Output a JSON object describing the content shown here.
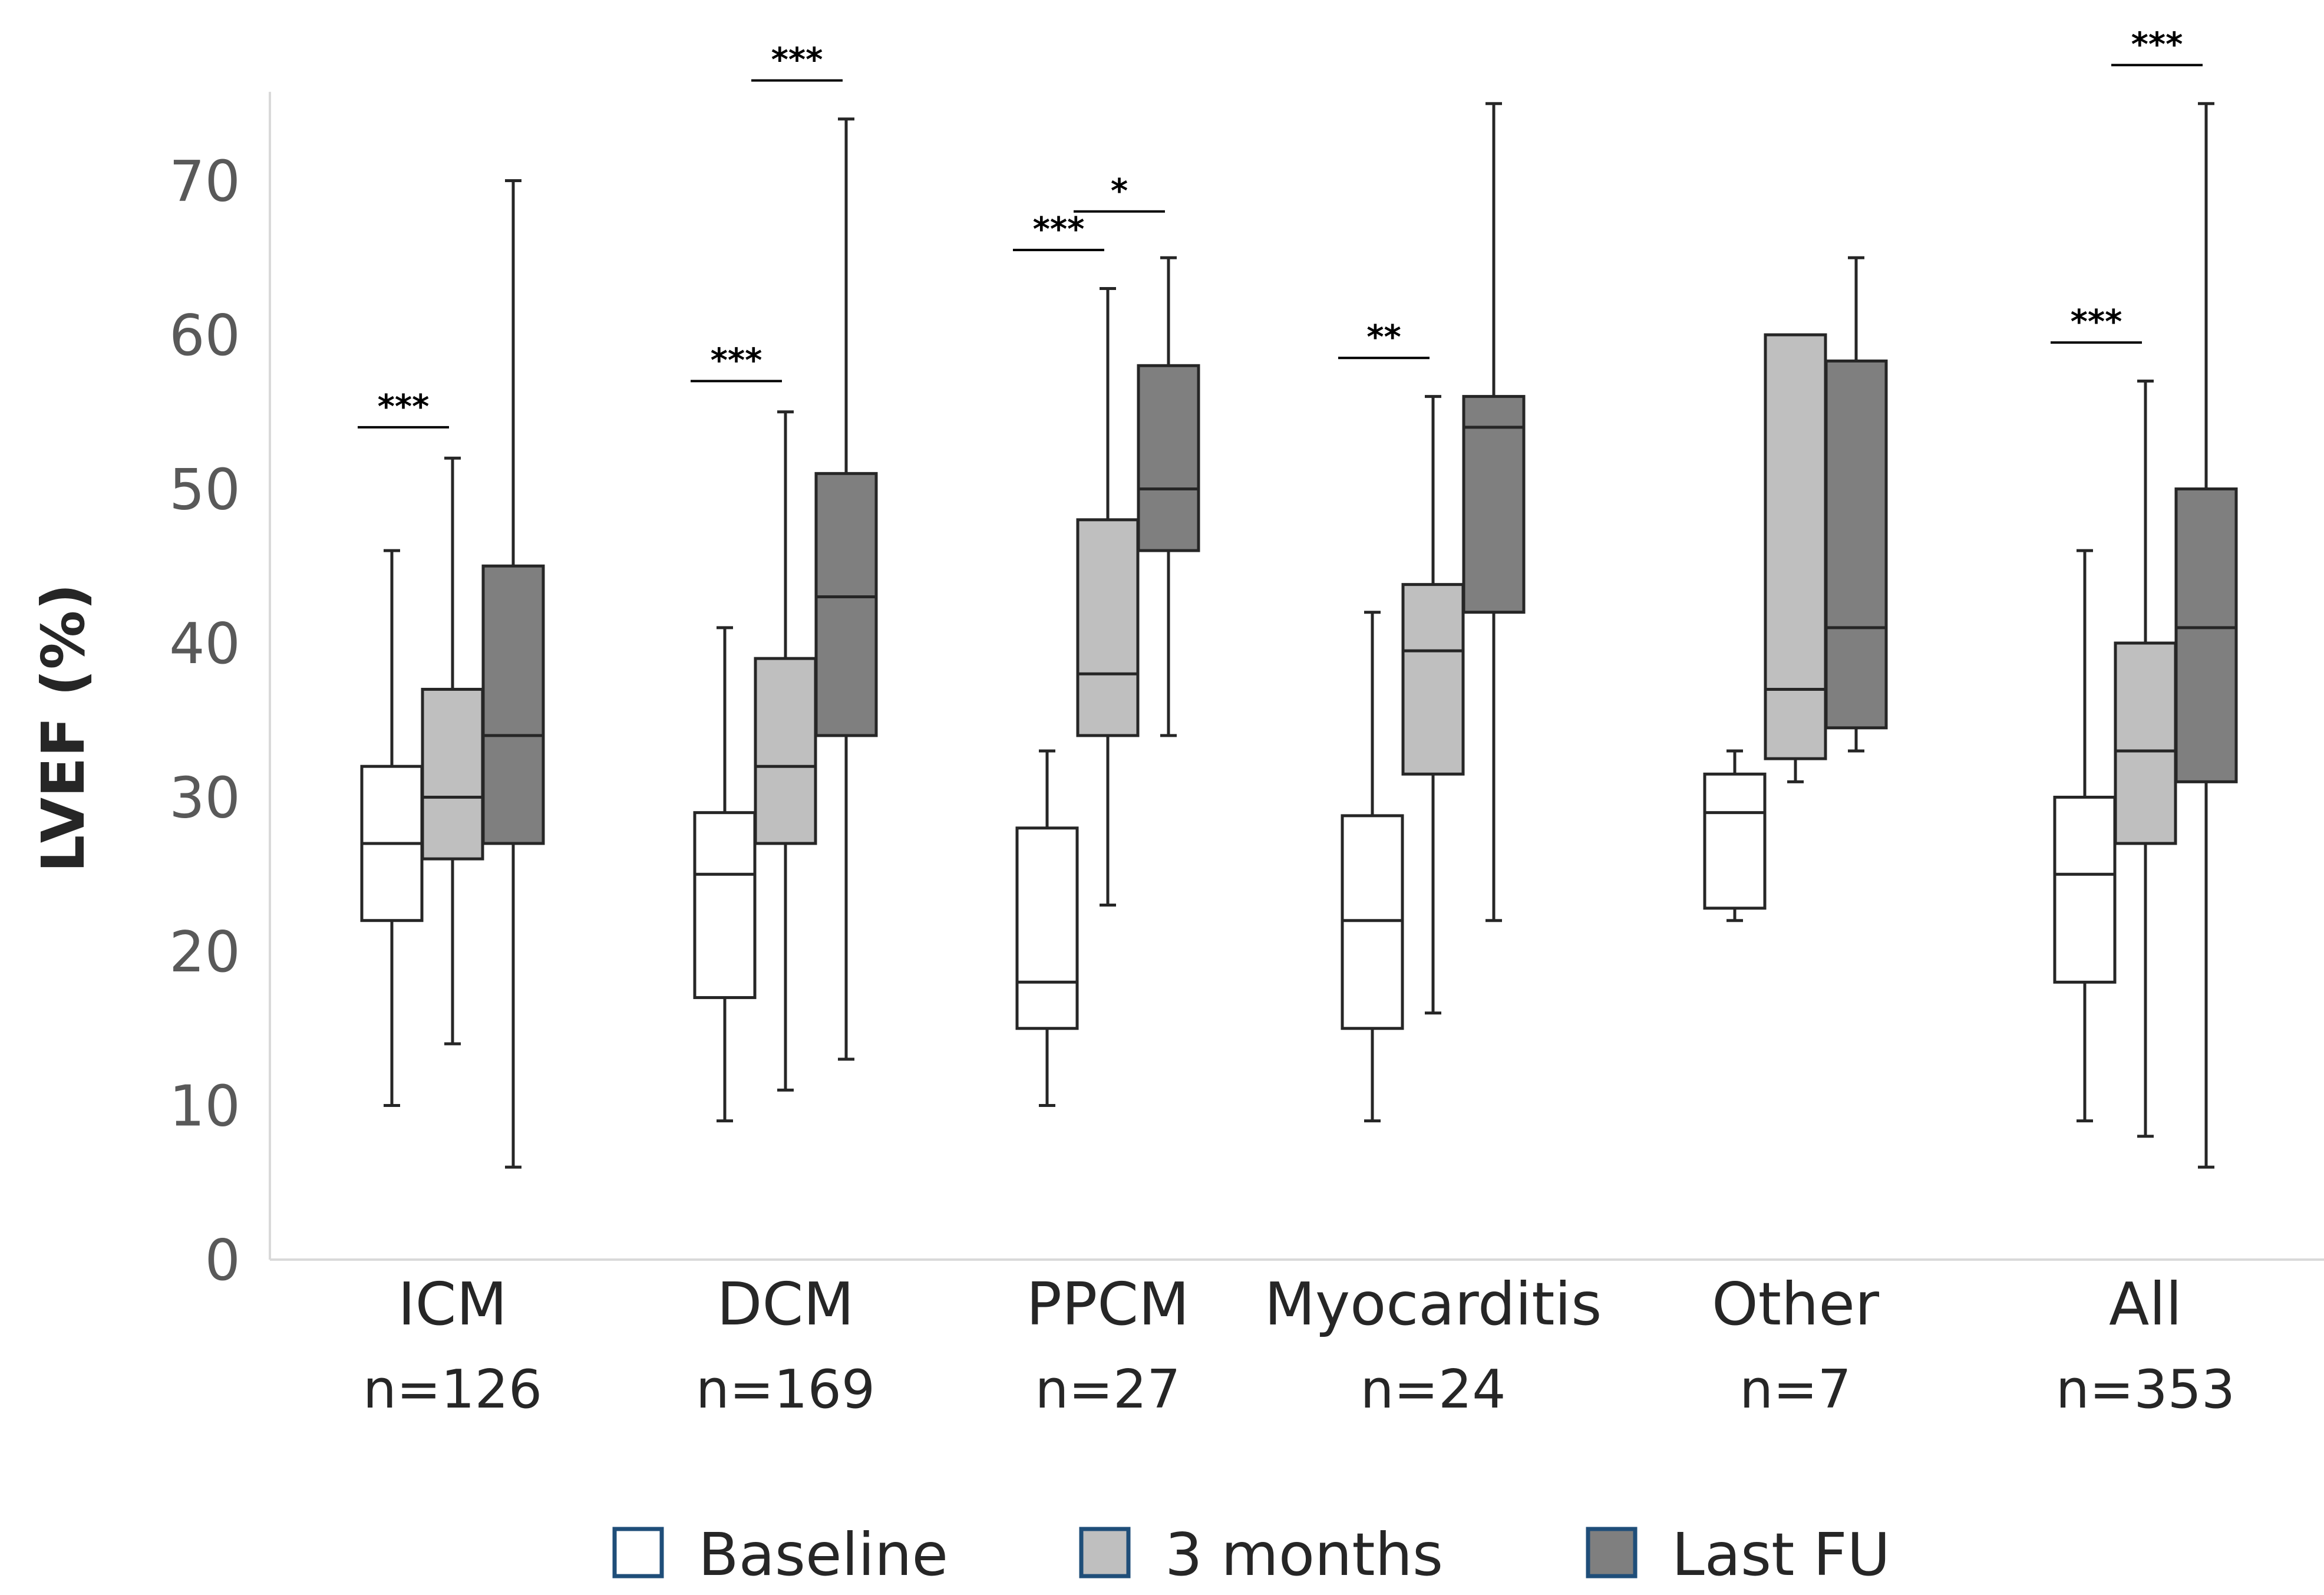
{
  "chart_data": {
    "type": "boxplot",
    "ylabel": "LVEF (%)",
    "xlabel": "",
    "ylim": [
      0,
      75
    ],
    "yticks": [
      0,
      10,
      20,
      30,
      40,
      50,
      60,
      70
    ],
    "grid": false,
    "legend_position": "bottom",
    "series": [
      {
        "name": "Baseline",
        "fill": "#ffffff",
        "legend_border": "#1f4e79"
      },
      {
        "name": "3 months",
        "fill": "#bfbfbf",
        "legend_border": "#1f4e79"
      },
      {
        "name": "Last FU",
        "fill": "#7f7f7f",
        "legend_border": "#1f4e79"
      }
    ],
    "categories": [
      {
        "label": "ICM",
        "n": "n=126",
        "boxes": [
          {
            "min": 10,
            "q1": 22,
            "median": 27,
            "q3": 32,
            "max": 46
          },
          {
            "min": 14,
            "q1": 26,
            "median": 30,
            "q3": 37,
            "max": 52
          },
          {
            "min": 6,
            "q1": 27,
            "median": 34,
            "q3": 45,
            "max": 70
          }
        ],
        "significance": [
          {
            "from": 0,
            "to": 1,
            "label": "***",
            "level": 54
          }
        ]
      },
      {
        "label": "DCM",
        "n": "n=169",
        "boxes": [
          {
            "min": 9,
            "q1": 17,
            "median": 25,
            "q3": 29,
            "max": 41
          },
          {
            "min": 11,
            "q1": 27,
            "median": 32,
            "q3": 39,
            "max": 55
          },
          {
            "min": 13,
            "q1": 34,
            "median": 43,
            "q3": 51,
            "max": 74
          }
        ],
        "significance": [
          {
            "from": 0,
            "to": 1,
            "label": "***",
            "level": 57
          },
          {
            "from": 1,
            "to": 2,
            "label": "***",
            "level": 76.5
          }
        ]
      },
      {
        "label": "PPCM",
        "n": "n=27",
        "boxes": [
          {
            "min": 10,
            "q1": 15,
            "median": 18,
            "q3": 28,
            "max": 33
          },
          {
            "min": 23,
            "q1": 34,
            "median": 38,
            "q3": 48,
            "max": 63
          },
          {
            "min": 34,
            "q1": 46,
            "median": 50,
            "q3": 58,
            "max": 65
          }
        ],
        "significance": [
          {
            "from": 0,
            "to": 1,
            "label": "***",
            "level": 65.5
          },
          {
            "from": 1,
            "to": 2,
            "label": "*",
            "level": 68
          }
        ]
      },
      {
        "label": "Myocarditis",
        "n": "n=24",
        "boxes": [
          {
            "min": 9,
            "q1": 15,
            "median": 22,
            "q3": 28.8,
            "max": 42
          },
          {
            "min": 16,
            "q1": 31.5,
            "median": 39.5,
            "q3": 43.8,
            "max": 56
          },
          {
            "min": 22,
            "q1": 42,
            "median": 54,
            "q3": 56,
            "max": 75
          }
        ],
        "significance": [
          {
            "from": 0,
            "to": 1,
            "label": "**",
            "level": 58.5
          }
        ]
      },
      {
        "label": "Other",
        "n": "n=7",
        "boxes": [
          {
            "min": 22,
            "q1": 22.8,
            "median": 29,
            "q3": 31.5,
            "max": 33
          },
          {
            "min": 31,
            "q1": 32.5,
            "median": 37,
            "q3": 60,
            "max": 60
          },
          {
            "min": 33,
            "q1": 34.5,
            "median": 41,
            "q3": 58.3,
            "max": 65
          }
        ],
        "significance": []
      },
      {
        "label": "All",
        "n": "n=353",
        "boxes": [
          {
            "min": 9,
            "q1": 18,
            "median": 25,
            "q3": 30,
            "max": 46
          },
          {
            "min": 8,
            "q1": 27,
            "median": 33,
            "q3": 40,
            "max": 57
          },
          {
            "min": 6,
            "q1": 31,
            "median": 41,
            "q3": 50,
            "max": 75
          }
        ],
        "significance": [
          {
            "from": 0,
            "to": 1,
            "label": "***",
            "level": 59.5
          },
          {
            "from": 1,
            "to": 2,
            "label": "***",
            "level": 77.5
          }
        ]
      }
    ]
  }
}
